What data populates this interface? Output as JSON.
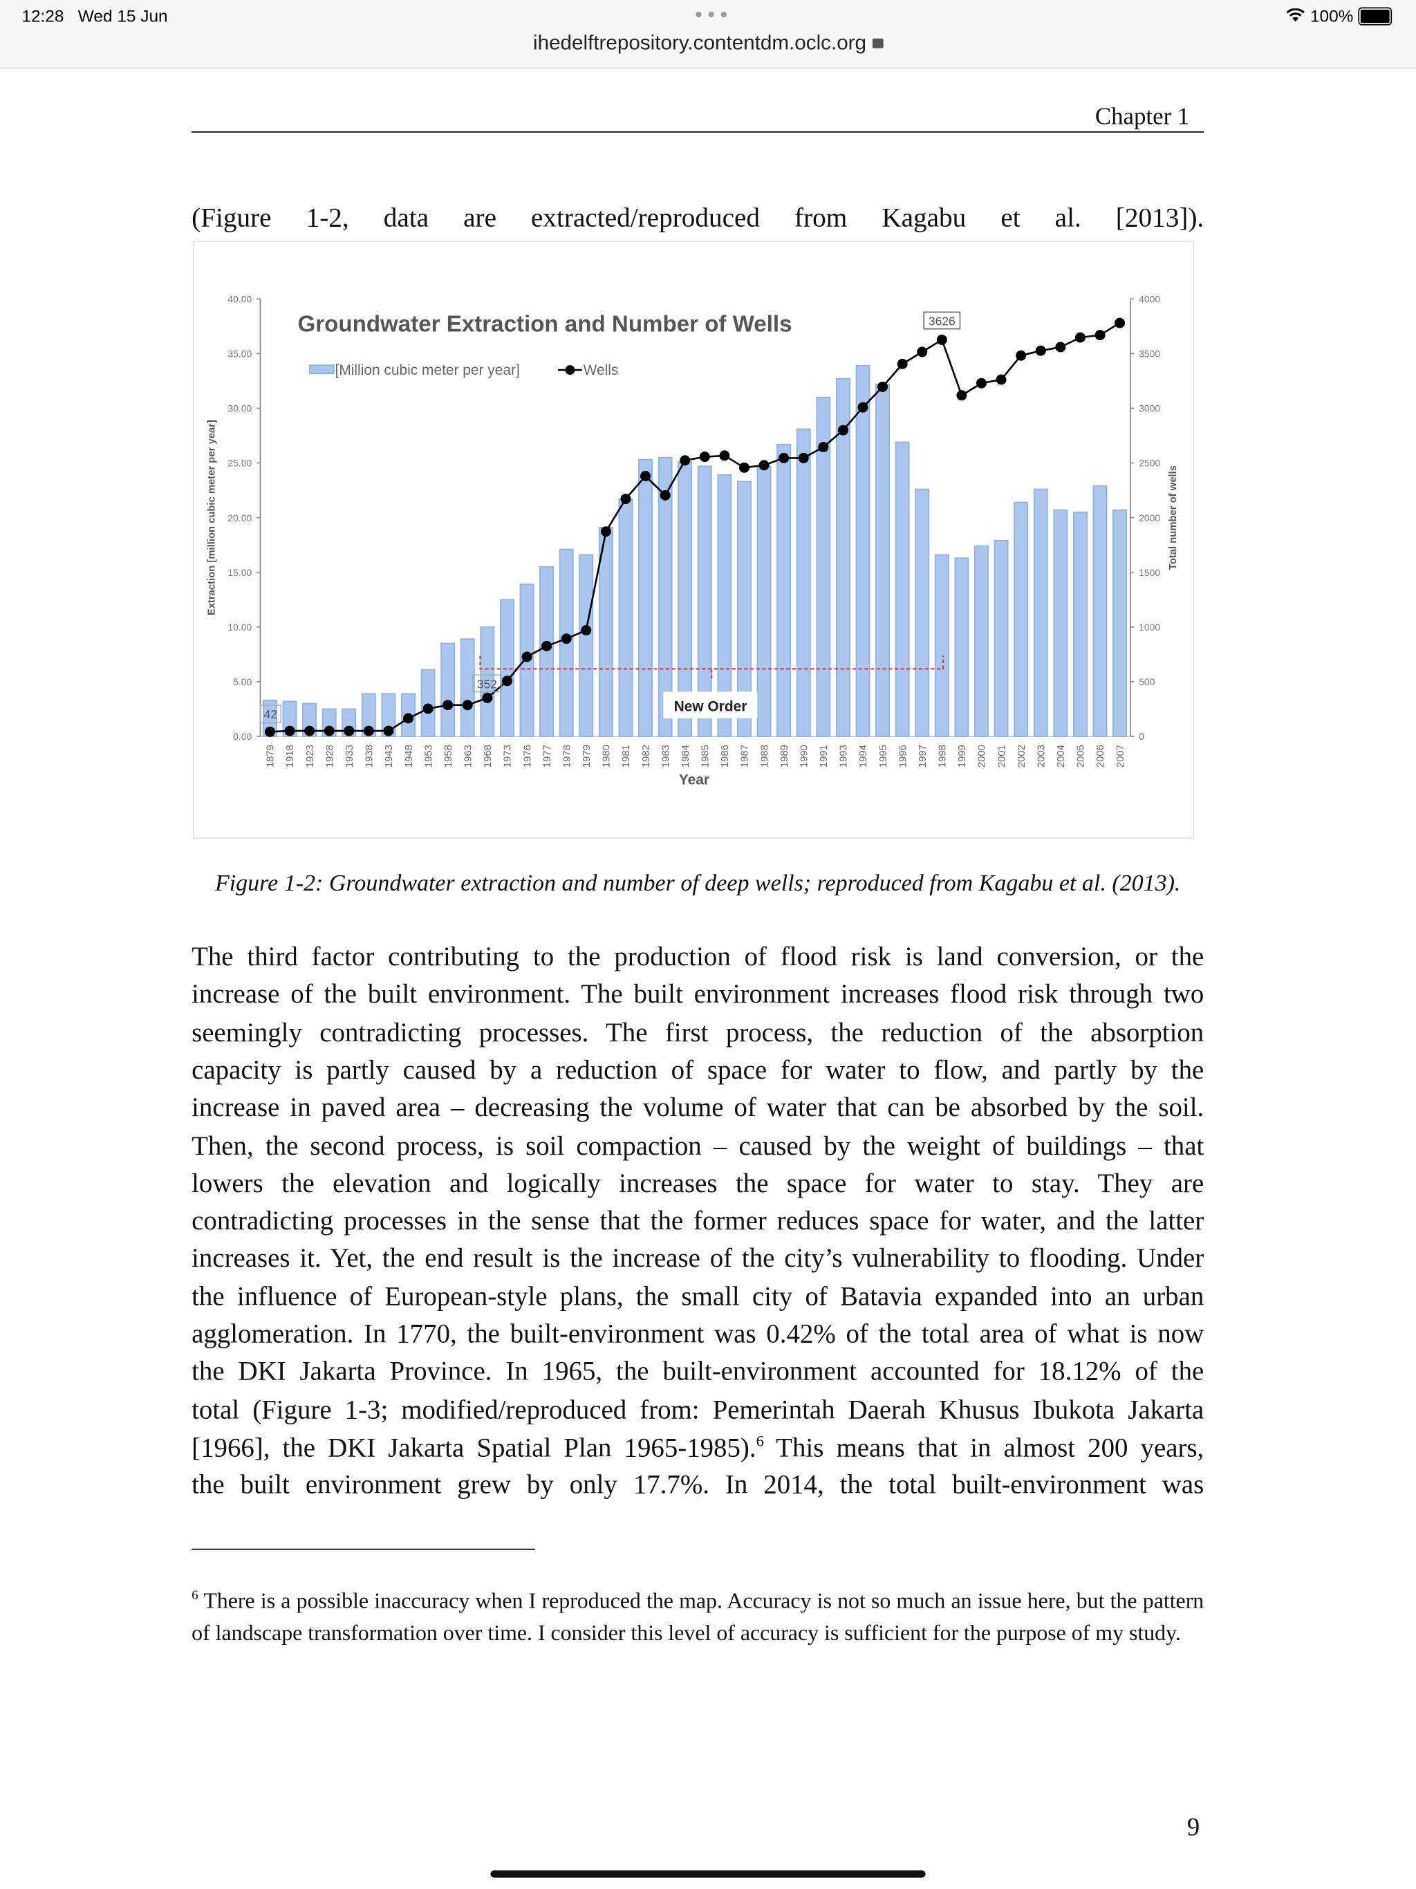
{
  "status_bar": {
    "time": "12:28",
    "date": "Wed 15 Jun",
    "url": "ihedelftrepository.contentdm.oclc.org",
    "battery": "100%"
  },
  "header": {
    "chapter": "Chapter 1"
  },
  "intro_line": "(Figure 1-2, data are extracted/reproduced from Kagabu et al. [2013]).",
  "chart_data": {
    "type": "bar",
    "title": "Groundwater Extraction and Number of Wells",
    "xlabel": "Year",
    "ylabel": "Extraction [million cubic meter per year]",
    "y2label": "Total number of wells",
    "ylim": [
      0,
      40
    ],
    "y2lim": [
      0,
      4000
    ],
    "yticks": [
      "0.00",
      "5.00",
      "10.00",
      "15.00",
      "20.00",
      "25.00",
      "30.00",
      "35.00",
      "40.00"
    ],
    "y2ticks": [
      "0",
      "500",
      "1000",
      "1500",
      "2000",
      "2500",
      "3000",
      "3500",
      "4000"
    ],
    "legend": [
      "[Million cubic meter per year]",
      "Wells"
    ],
    "legend_position": "top-left",
    "categories": [
      "1879",
      "1918",
      "1923",
      "1928",
      "1933",
      "1938",
      "1943",
      "1948",
      "1953",
      "1958",
      "1963",
      "1968",
      "1973",
      "1976",
      "1977",
      "1978",
      "1979",
      "1980",
      "1981",
      "1982",
      "1983",
      "1984",
      "1985",
      "1986",
      "1987",
      "1988",
      "1989",
      "1990",
      "1991",
      "1993",
      "1994",
      "1995",
      "1996",
      "1997",
      "1998",
      "1999",
      "2000",
      "2001",
      "2002",
      "2003",
      "2004",
      "2005",
      "2006",
      "2007"
    ],
    "series": [
      {
        "name": "[Million cubic meter per year]",
        "type": "bar",
        "axis": "left",
        "color": "#a9c6ef",
        "values": [
          3.3,
          3.2,
          3.0,
          2.5,
          2.5,
          3.9,
          3.9,
          3.9,
          6.1,
          8.5,
          8.9,
          10.0,
          12.5,
          13.9,
          15.5,
          17.1,
          16.6,
          19.1,
          21.7,
          25.3,
          25.5,
          25.1,
          24.7,
          23.9,
          23.3,
          24.7,
          26.7,
          28.1,
          31.0,
          32.7,
          33.9,
          32.2,
          26.9,
          22.6,
          16.6,
          16.3,
          17.4,
          17.9,
          21.4,
          22.6,
          20.7,
          20.5,
          22.9,
          20.7
        ]
      },
      {
        "name": "Wells",
        "type": "line",
        "axis": "right",
        "color": "#000000",
        "values": [
          42,
          50,
          50,
          50,
          50,
          50,
          50,
          165,
          253,
          286,
          286,
          352,
          507,
          727,
          826,
          893,
          970,
          1873,
          2171,
          2380,
          2204,
          2523,
          2556,
          2567,
          2457,
          2479,
          2545,
          2545,
          2645,
          2799,
          3008,
          3196,
          3405,
          3515,
          3626,
          3118,
          3229,
          3262,
          3482,
          3526,
          3559,
          3647,
          3669,
          3780
        ]
      }
    ],
    "annotations": [
      {
        "text": "42",
        "category": "1879"
      },
      {
        "text": "352",
        "category": "1968"
      },
      {
        "text": "3626",
        "category": "1998"
      },
      {
        "text": "New Order",
        "range": [
          "1968",
          "1998"
        ]
      }
    ]
  },
  "caption": "Figure 1-2: Groundwater extraction and number of deep wells; reproduced from Kagabu et al. (2013).",
  "body_lines": [
    "The third factor contributing to the production of flood risk is land conversion, or the",
    "increase of the built environment. The built environment increases flood risk through two",
    "seemingly contradicting processes. The first process, the reduction of the absorption",
    "capacity is partly caused by a reduction of space for water to flow, and partly by the",
    "increase in paved area – decreasing the volume of water that can be absorbed by the soil.",
    "Then, the second process, is soil compaction – caused by the weight of buildings – that",
    "lowers the elevation and logically increases the space for water to stay. They are",
    "contradicting processes in the sense that the former reduces space for water, and the latter",
    "increases it. Yet, the end result is the increase of the city’s vulnerability to flooding. Under",
    "the influence of European-style plans, the small city of Batavia expanded into an urban",
    "agglomeration. In 1770, the built-environment was 0.42% of the total area of what is now",
    "the DKI Jakarta Province. In 1965, the built-environment accounted for 18.12% of the",
    "total (Figure 1-3; modified/reproduced from: Pemerintah Daerah Khusus Ibukota Jakarta",
    "[1966], the DKI Jakarta Spatial Plan 1965-1985).",
    "the built environment grew by only 17.7%. In 2014, the total built-environment was"
  ],
  "footnote_ref": "6",
  "line14_rest": " This means that in almost 200 years,",
  "footnote": {
    "number": "6",
    "text": " There is a possible inaccuracy when I reproduced the map. Accuracy is not so much an issue here, but the pattern of landscape transformation over time. I consider this level of accuracy is sufficient for the purpose of my study."
  },
  "page_number": "9"
}
